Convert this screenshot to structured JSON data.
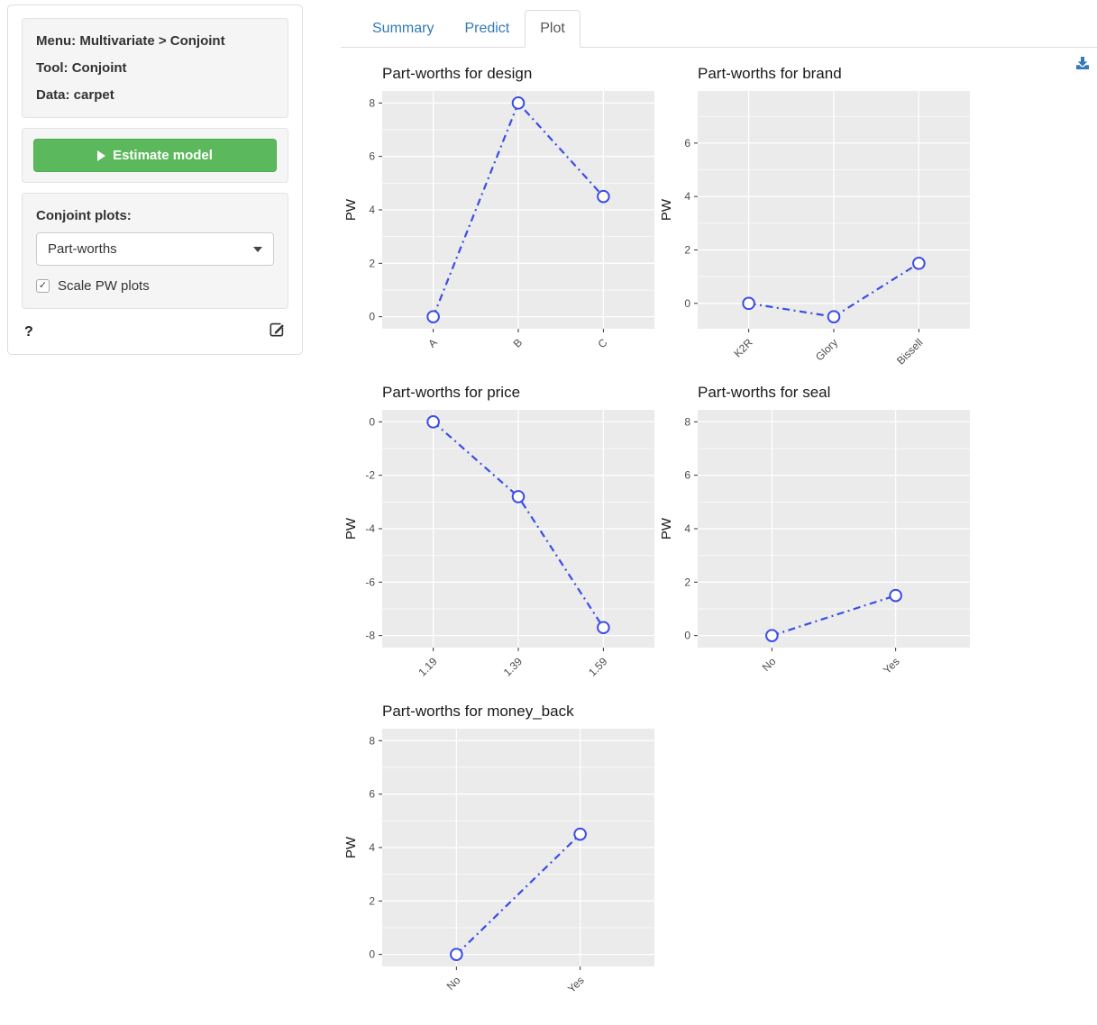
{
  "sidebar": {
    "context": {
      "lines": [
        "Menu: Multivariate > Conjoint",
        "Tool: Conjoint",
        "Data: carpet"
      ]
    },
    "estimate_button": {
      "label": "Estimate model"
    },
    "plots_panel": {
      "label": "Conjoint plots:",
      "selected_plot": "Part-worths",
      "scale_checkbox": {
        "label": "Scale PW plots",
        "checked": true,
        "checkmark": "✓"
      }
    },
    "help_label": "?"
  },
  "tabs": [
    {
      "label": "Summary",
      "active": false
    },
    {
      "label": "Predict",
      "active": false
    },
    {
      "label": "Plot",
      "active": true
    }
  ],
  "icons": {
    "download": "download-icon",
    "edit": "edit-icon",
    "play": "play-icon",
    "caret": "caret-down-icon"
  },
  "colors": {
    "line": "#3A4DE6",
    "panel_bg": "#EBEBEB",
    "grid": "#FFFFFF",
    "tick_label": "#4d4d4d",
    "axis_title": "#1a1a1a",
    "tab_link": "#337ab7",
    "button_green": "#5cb85c",
    "download_icon": "#337ab7"
  },
  "chart_data": [
    {
      "type": "line",
      "title": "Part-worths for design",
      "ylabel": "PW",
      "xlabel": "",
      "categories": [
        "A",
        "B",
        "C"
      ],
      "values": [
        0,
        8,
        4.5
      ],
      "ylim": [
        -0.45,
        8.45
      ],
      "yticks": [
        0,
        2,
        4,
        6,
        8
      ],
      "line_style": "dotdash",
      "marker": "open-circle",
      "grid": true,
      "legend": "none"
    },
    {
      "type": "line",
      "title": "Part-worths for brand",
      "ylabel": "PW",
      "xlabel": "",
      "categories": [
        "K2R",
        "Glory",
        "Bissell"
      ],
      "values": [
        0,
        -0.5,
        1.5
      ],
      "ylim": [
        -0.95,
        7.95
      ],
      "yticks": [
        0,
        2,
        4,
        6
      ],
      "line_style": "dotdash",
      "marker": "open-circle",
      "grid": true,
      "legend": "none"
    },
    {
      "type": "line",
      "title": "Part-worths for price",
      "ylabel": "PW",
      "xlabel": "",
      "categories": [
        "1.19",
        "1.39",
        "1.59"
      ],
      "values": [
        0,
        -2.8,
        -7.7
      ],
      "ylim": [
        -8.45,
        0.45
      ],
      "yticks": [
        -8,
        -6,
        -4,
        -2,
        0
      ],
      "line_style": "dotdash",
      "marker": "open-circle",
      "grid": true,
      "legend": "none"
    },
    {
      "type": "line",
      "title": "Part-worths for seal",
      "ylabel": "PW",
      "xlabel": "",
      "categories": [
        "No",
        "Yes"
      ],
      "values": [
        0,
        1.5
      ],
      "ylim": [
        -0.45,
        8.45
      ],
      "yticks": [
        0,
        2,
        4,
        6,
        8
      ],
      "line_style": "dotdash",
      "marker": "open-circle",
      "grid": true,
      "legend": "none"
    },
    {
      "type": "line",
      "title": "Part-worths for money_back",
      "ylabel": "PW",
      "xlabel": "",
      "categories": [
        "No",
        "Yes"
      ],
      "values": [
        0,
        4.5
      ],
      "ylim": [
        -0.45,
        8.45
      ],
      "yticks": [
        0,
        2,
        4,
        6,
        8
      ],
      "line_style": "dotdash",
      "marker": "open-circle",
      "grid": true,
      "legend": "none"
    }
  ]
}
